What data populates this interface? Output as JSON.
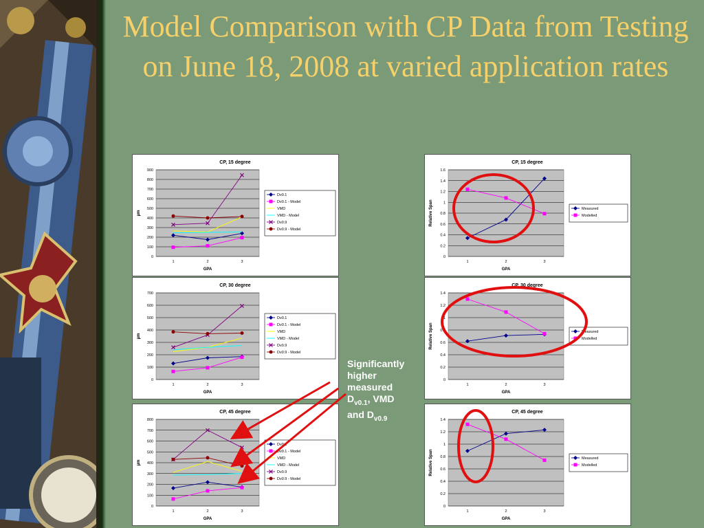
{
  "slide": {
    "title": "Model Comparison with CP Data from Testing on June 18, 2008 at varied application rates",
    "annotation": {
      "line1": "Significantly",
      "line2": "higher",
      "line3": "measured",
      "d_letter": "D",
      "d_sub1": "v0.1",
      "middle": ", VMD",
      "and_text": "and D",
      "d_sub2": "v0.9"
    }
  },
  "colors": {
    "background": "#7a9a78",
    "title": "#f6d06a",
    "plot_area": "#c0c0c0",
    "annotation_arrow": "#e01010",
    "highlight_ellipse": "#e01010"
  },
  "chart_data": [
    {
      "type": "line",
      "title": "CP, 15 degree",
      "xlabel": "GPA",
      "ylabel": "µm",
      "x": [
        1,
        2,
        3
      ],
      "ylim": [
        0,
        900
      ],
      "yticks": [
        0,
        100,
        200,
        300,
        400,
        500,
        600,
        700,
        800,
        900
      ],
      "legend": "right",
      "grid": true,
      "series": [
        {
          "name": "Dv0.1",
          "color": "#00008b",
          "marker": "diamond",
          "values": [
            220,
            175,
            240
          ]
        },
        {
          "name": "Dv0.1 - Model",
          "color": "#ff00ff",
          "marker": "square",
          "values": [
            95,
            110,
            195
          ]
        },
        {
          "name": "VMD",
          "color": "#ffff00",
          "marker": "none",
          "values": [
            265,
            255,
            410
          ]
        },
        {
          "name": "VMD - Model",
          "color": "#00ffff",
          "marker": "none",
          "values": [
            245,
            250,
            255
          ]
        },
        {
          "name": "Dv0.9",
          "color": "#800080",
          "marker": "x",
          "values": [
            330,
            345,
            845
          ]
        },
        {
          "name": "Dv0.9 - Model",
          "color": "#8b0000",
          "marker": "circle",
          "values": [
            420,
            400,
            415
          ]
        }
      ]
    },
    {
      "type": "line",
      "title": "CP, 15 degree",
      "xlabel": "GPA",
      "ylabel": "Relative Span",
      "x": [
        1,
        2,
        3
      ],
      "ylim": [
        0,
        1.6
      ],
      "yticks": [
        0,
        0.2,
        0.4,
        0.6,
        0.8,
        1,
        1.2,
        1.4,
        1.6
      ],
      "legend": "right",
      "grid": true,
      "series": [
        {
          "name": "Measured",
          "color": "#00008b",
          "marker": "diamond",
          "values": [
            0.34,
            0.68,
            1.44
          ]
        },
        {
          "name": "Modelled",
          "color": "#ff00ff",
          "marker": "square",
          "values": [
            1.24,
            1.08,
            0.79
          ]
        }
      ]
    },
    {
      "type": "line",
      "title": "CP, 30 degree",
      "xlabel": "GPA",
      "ylabel": "µm",
      "x": [
        1,
        2,
        3
      ],
      "ylim": [
        0,
        700
      ],
      "yticks": [
        0,
        100,
        200,
        300,
        400,
        500,
        600,
        700
      ],
      "legend": "right",
      "grid": true,
      "series": [
        {
          "name": "Dv0.1",
          "color": "#00008b",
          "marker": "diamond",
          "values": [
            130,
            175,
            185
          ]
        },
        {
          "name": "Dv0.1 - Model",
          "color": "#ff00ff",
          "marker": "square",
          "values": [
            65,
            95,
            180
          ]
        },
        {
          "name": "VMD",
          "color": "#ffff00",
          "marker": "none",
          "values": [
            225,
            260,
            335
          ]
        },
        {
          "name": "VMD - Model",
          "color": "#00ffff",
          "marker": "none",
          "values": [
            240,
            260,
            275
          ]
        },
        {
          "name": "Dv0.9",
          "color": "#800080",
          "marker": "x",
          "values": [
            260,
            360,
            595
          ]
        },
        {
          "name": "Dv0.9 - Model",
          "color": "#8b0000",
          "marker": "circle",
          "values": [
            385,
            370,
            375
          ]
        }
      ]
    },
    {
      "type": "line",
      "title": "CP, 30 degree",
      "xlabel": "GPA",
      "ylabel": "Relative Span",
      "x": [
        1,
        2,
        3
      ],
      "ylim": [
        0,
        1.4
      ],
      "yticks": [
        0,
        0.2,
        0.4,
        0.6,
        0.8,
        1,
        1.2,
        1.4
      ],
      "legend": "right",
      "grid": true,
      "series": [
        {
          "name": "Measured",
          "color": "#00008b",
          "marker": "diamond",
          "values": [
            0.62,
            0.71,
            0.73
          ]
        },
        {
          "name": "Modelled",
          "color": "#ff00ff",
          "marker": "square",
          "values": [
            1.3,
            1.09,
            0.74
          ]
        }
      ]
    },
    {
      "type": "line",
      "title": "CP, 45 degree",
      "xlabel": "GPA",
      "ylabel": "µm",
      "x": [
        1,
        2,
        3
      ],
      "ylim": [
        0,
        800
      ],
      "yticks": [
        0,
        100,
        200,
        300,
        400,
        500,
        600,
        700,
        800
      ],
      "legend": "right",
      "grid": true,
      "series": [
        {
          "name": "Dv0.1",
          "color": "#00008b",
          "marker": "diamond",
          "values": [
            165,
            220,
            175
          ]
        },
        {
          "name": "Dv0.1 - Model",
          "color": "#ff00ff",
          "marker": "square",
          "values": [
            65,
            140,
            170
          ]
        },
        {
          "name": "VMD",
          "color": "#ffff00",
          "marker": "none",
          "values": [
            310,
            410,
            320
          ]
        },
        {
          "name": "VMD - Model",
          "color": "#00ffff",
          "marker": "none",
          "values": [
            285,
            290,
            300
          ]
        },
        {
          "name": "Dv0.9",
          "color": "#800080",
          "marker": "x",
          "values": [
            430,
            700,
            540
          ]
        },
        {
          "name": "Dv0.9 - Model",
          "color": "#8b0000",
          "marker": "circle",
          "values": [
            430,
            445,
            370
          ]
        }
      ]
    },
    {
      "type": "line",
      "title": "CP, 45 degree",
      "xlabel": "GPA",
      "ylabel": "Relative Span",
      "x": [
        1,
        2,
        3
      ],
      "ylim": [
        0,
        1.4
      ],
      "yticks": [
        0,
        0.2,
        0.4,
        0.6,
        0.8,
        1,
        1.2,
        1.4
      ],
      "legend": "right",
      "grid": true,
      "series": [
        {
          "name": "Measured",
          "color": "#00008b",
          "marker": "diamond",
          "values": [
            0.89,
            1.17,
            1.23
          ]
        },
        {
          "name": "Modelled",
          "color": "#ff00ff",
          "marker": "square",
          "values": [
            1.32,
            1.08,
            0.74
          ]
        }
      ]
    }
  ]
}
